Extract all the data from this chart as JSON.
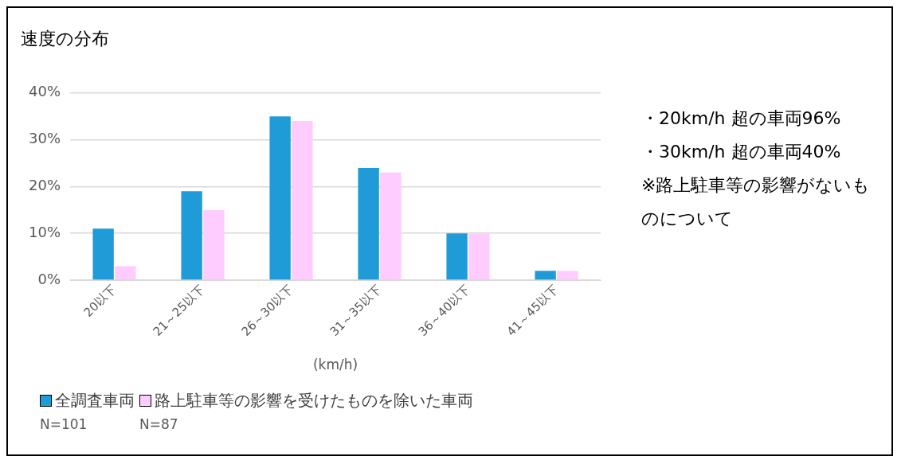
{
  "chart_data": {
    "type": "bar",
    "title": "速度の分布",
    "xlabel": "(km/h)",
    "categories": [
      "20以下",
      "21～25以下",
      "26～30以下",
      "31～35以下",
      "36～40以下",
      "41～45以下"
    ],
    "series": [
      {
        "name": "全調査車両",
        "color": "#1f9bd7",
        "values": [
          11,
          19,
          35,
          24,
          10,
          2
        ]
      },
      {
        "name": "路上駐車等の影響を受けたものを除いた車両",
        "color": "#ffccff",
        "values": [
          3,
          15,
          34,
          23,
          10,
          2
        ]
      }
    ],
    "ylim": [
      0,
      40
    ],
    "yticks": [
      {
        "value": 0,
        "label": "0%"
      },
      {
        "value": 10,
        "label": "10%"
      },
      {
        "value": 20,
        "label": "20%"
      },
      {
        "value": 30,
        "label": "30%"
      },
      {
        "value": 40,
        "label": "40%"
      }
    ],
    "grid": "y",
    "legend": "bottom",
    "annotations": [
      "・20km/h 超の車両96%",
      "・30km/h 超の車両40%",
      "※路上駐車等の影響がないものについて",
      "N=101",
      "N=87"
    ]
  }
}
